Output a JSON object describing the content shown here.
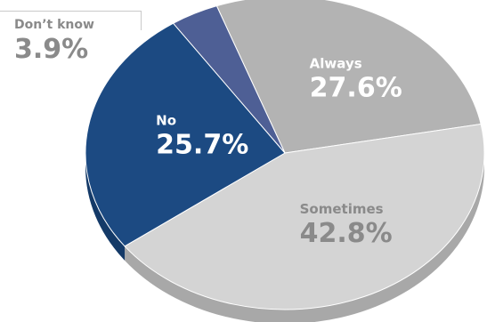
{
  "chart_data": {
    "type": "pie",
    "title": "",
    "slices": [
      {
        "label": "Always",
        "value": 27.6,
        "value_label": "27.6%",
        "color": "#b3b3b3",
        "side_color": "#8f8f8f",
        "label_color": "#ffffff"
      },
      {
        "label": "Sometimes",
        "value": 42.8,
        "value_label": "42.8%",
        "color": "#d4d4d4",
        "side_color": "#a8a8a8",
        "label_color": "#8a8a8a"
      },
      {
        "label": "No",
        "value": 25.7,
        "value_label": "25.7%",
        "color": "#1c4a82",
        "side_color": "#143a68",
        "label_color": "#ffffff"
      },
      {
        "label": "Don’t know",
        "value": 3.9,
        "value_label": "3.9%",
        "color": "#4e5f95",
        "side_color": "#3b4a78",
        "label_color": "#8a8a8a"
      }
    ]
  }
}
